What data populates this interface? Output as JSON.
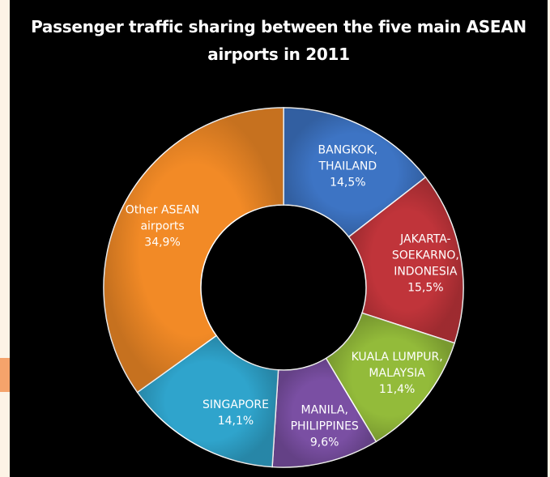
{
  "title_lines": [
    "Passenger traffic sharing between the five main ASEAN",
    "airports in 2011"
  ],
  "chart_data": {
    "type": "pie",
    "variant": "donut",
    "title": "Passenger traffic sharing between the five main ASEAN airports in 2011",
    "start": "top",
    "direction": "clockwise",
    "slices": [
      {
        "label_lines": [
          "BANGKOK,",
          "THAILAND"
        ],
        "value": 14.5,
        "value_label": "14,5%",
        "color": "#3d74c4"
      },
      {
        "label_lines": [
          "JAKARTA-",
          "SOEKARNO,",
          "INDONESIA"
        ],
        "value": 15.5,
        "value_label": "15,5%",
        "color": "#c0343a"
      },
      {
        "label_lines": [
          "KUALA LUMPUR,",
          "MALAYSIA"
        ],
        "value": 11.4,
        "value_label": "11,4%",
        "color": "#93bb3a"
      },
      {
        "label_lines": [
          "MANILA,",
          "PHILIPPINES"
        ],
        "value": 9.6,
        "value_label": "9,6%",
        "color": "#7a4fa3"
      },
      {
        "label_lines": [
          "SINGAPORE"
        ],
        "value": 14.1,
        "value_label": "14,1%",
        "color": "#2fa4cc"
      },
      {
        "label_lines": [
          "Other ASEAN",
          "airports"
        ],
        "value": 34.9,
        "value_label": "34,9%",
        "color": "#f28a26"
      }
    ]
  }
}
